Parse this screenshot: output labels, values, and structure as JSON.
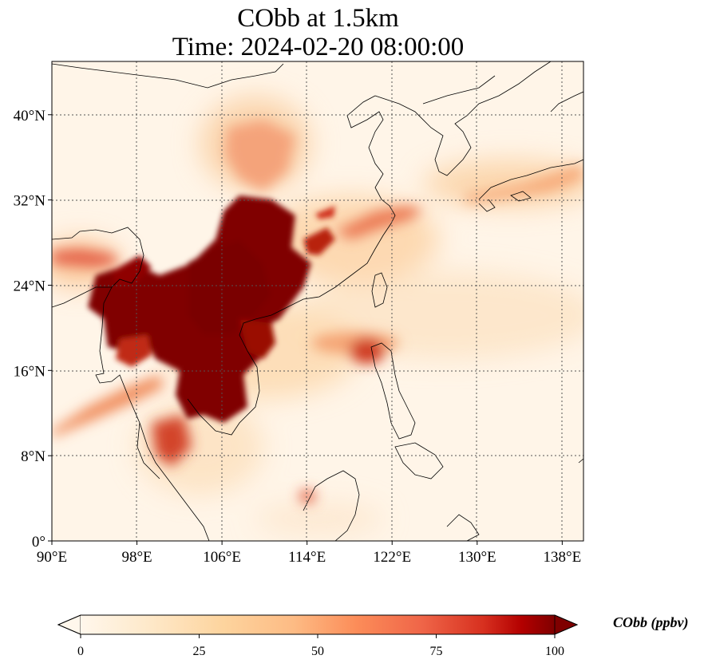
{
  "title": {
    "line1": "CObb at 1.5km",
    "line2": "Time: 2024-02-20 08:00:00"
  },
  "map": {
    "projection": "PlateCarree",
    "lon_range": [
      90,
      140
    ],
    "lat_range": [
      0,
      45
    ],
    "gridlines": "dotted",
    "lon_ticks": [
      {
        "value": 90,
        "label": "90°E"
      },
      {
        "value": 98,
        "label": "98°E"
      },
      {
        "value": 106,
        "label": "106°E"
      },
      {
        "value": 114,
        "label": "114°E"
      },
      {
        "value": 122,
        "label": "122°E"
      },
      {
        "value": 130,
        "label": "130°E"
      },
      {
        "value": 138,
        "label": "138°E"
      }
    ],
    "lat_ticks": [
      {
        "value": 0,
        "label": "0°"
      },
      {
        "value": 8,
        "label": "8°N"
      },
      {
        "value": 16,
        "label": "16°N"
      },
      {
        "value": 24,
        "label": "24°N"
      },
      {
        "value": 32,
        "label": "32°N"
      },
      {
        "value": 40,
        "label": "40°N"
      }
    ],
    "colormap": "OrRd",
    "colors": {
      "low": "#fff7ec",
      "mid": "#fc8d59",
      "high": "#7f0000",
      "coastline": "#000000",
      "grid": "#666666"
    }
  },
  "colorbar": {
    "title": "CObb (ppbv)",
    "min": 0,
    "max": 100,
    "extend": "both",
    "ticks": [
      {
        "value": 0,
        "label": "0"
      },
      {
        "value": 25,
        "label": "25"
      },
      {
        "value": 50,
        "label": "50"
      },
      {
        "value": 75,
        "label": "75"
      },
      {
        "value": 100,
        "label": "100"
      }
    ]
  }
}
